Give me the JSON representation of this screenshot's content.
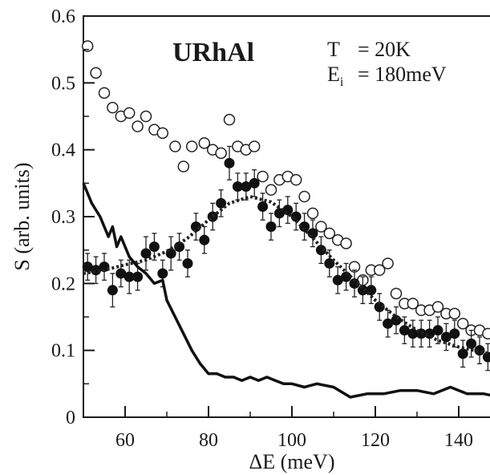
{
  "chart_data": {
    "type": "scatter",
    "title": "URhAl",
    "annotations": {
      "temperature_label": "T",
      "temperature_value": "= 20K",
      "energy_label": "E",
      "energy_subscript": "i",
      "energy_value": "= 180meV"
    },
    "xlabel": "ΔE (meV)",
    "ylabel": "S (arb. units)",
    "xlim": [
      50,
      150
    ],
    "ylim": [
      0,
      0.6
    ],
    "xticks": [
      60,
      80,
      100,
      120,
      140
    ],
    "yticks": [
      0,
      0.1,
      0.2,
      0.3,
      0.4,
      0.5,
      0.6
    ],
    "xtick_labels": [
      "60",
      "80",
      "100",
      "120",
      "140"
    ],
    "ytick_labels": [
      "0",
      "0.1",
      "0.2",
      "0.3",
      "0.4",
      "0.5",
      "0.6"
    ],
    "grid": false,
    "series": [
      {
        "marker": "open-circle",
        "x": [
          51,
          53,
          55,
          57,
          59,
          61,
          63,
          65,
          67,
          69,
          72,
          74,
          76,
          79,
          81,
          83,
          85,
          87,
          89,
          91,
          93,
          95,
          97,
          99,
          101,
          103,
          105,
          107,
          109,
          111,
          113,
          115,
          117,
          119,
          121,
          123,
          125,
          127,
          129,
          131,
          133,
          135,
          137,
          139,
          141,
          143,
          145,
          147,
          149
        ],
        "y": [
          0.555,
          0.515,
          0.485,
          0.463,
          0.45,
          0.455,
          0.435,
          0.45,
          0.43,
          0.425,
          0.405,
          0.375,
          0.405,
          0.41,
          0.4,
          0.395,
          0.445,
          0.405,
          0.4,
          0.405,
          0.36,
          0.34,
          0.355,
          0.36,
          0.355,
          0.33,
          0.305,
          0.285,
          0.275,
          0.265,
          0.26,
          0.225,
          0.205,
          0.22,
          0.22,
          0.23,
          0.185,
          0.17,
          0.17,
          0.16,
          0.16,
          0.165,
          0.155,
          0.155,
          0.14,
          0.13,
          0.13,
          0.125,
          0.125
        ]
      },
      {
        "marker": "filled-circle-errorbar",
        "x": [
          51,
          53,
          55,
          57,
          59,
          61,
          63,
          65,
          67,
          69,
          71,
          73,
          75,
          77,
          79,
          81,
          83,
          85,
          87,
          89,
          91,
          93,
          95,
          97,
          99,
          101,
          103,
          105,
          107,
          109,
          111,
          113,
          115,
          117,
          119,
          121,
          123,
          125,
          127,
          129,
          131,
          133,
          135,
          137,
          139,
          141,
          143,
          145,
          147,
          149
        ],
        "y": [
          0.225,
          0.22,
          0.225,
          0.19,
          0.215,
          0.21,
          0.21,
          0.245,
          0.255,
          0.215,
          0.245,
          0.255,
          0.23,
          0.285,
          0.265,
          0.3,
          0.32,
          0.38,
          0.345,
          0.345,
          0.35,
          0.315,
          0.285,
          0.305,
          0.31,
          0.3,
          0.285,
          0.275,
          0.25,
          0.23,
          0.205,
          0.21,
          0.2,
          0.19,
          0.19,
          0.165,
          0.14,
          0.145,
          0.13,
          0.125,
          0.125,
          0.125,
          0.13,
          0.12,
          0.125,
          0.095,
          0.11,
          0.1,
          0.09,
          0.085
        ],
        "err": [
          0.02,
          0.02,
          0.02,
          0.025,
          0.02,
          0.025,
          0.02,
          0.025,
          0.02,
          0.02,
          0.025,
          0.02,
          0.02,
          0.02,
          0.02,
          0.02,
          0.02,
          0.025,
          0.02,
          0.02,
          0.02,
          0.02,
          0.02,
          0.02,
          0.02,
          0.02,
          0.02,
          0.02,
          0.02,
          0.02,
          0.02,
          0.02,
          0.02,
          0.02,
          0.02,
          0.02,
          0.02,
          0.02,
          0.02,
          0.02,
          0.02,
          0.02,
          0.02,
          0.02,
          0.02,
          0.02,
          0.02,
          0.02,
          0.02,
          0.02
        ]
      },
      {
        "style": "dotted-fit",
        "x": [
          50,
          55,
          60,
          65,
          70,
          75,
          80,
          85,
          90,
          95,
          100,
          105,
          110,
          115,
          120,
          125,
          130,
          135,
          140,
          145,
          150
        ],
        "y": [
          0.215,
          0.22,
          0.228,
          0.235,
          0.248,
          0.268,
          0.295,
          0.32,
          0.33,
          0.322,
          0.3,
          0.268,
          0.235,
          0.205,
          0.175,
          0.15,
          0.13,
          0.115,
          0.105,
          0.098,
          0.092
        ]
      },
      {
        "style": "solid-line",
        "x": [
          50,
          52,
          54,
          56,
          57,
          58,
          59,
          61,
          63,
          65,
          67,
          69,
          70,
          72,
          74,
          76,
          78,
          80,
          82,
          84,
          86,
          88,
          90,
          92,
          94,
          96,
          98,
          100,
          103,
          106,
          110,
          114,
          118,
          122,
          126,
          130,
          134,
          138,
          142,
          146,
          150
        ],
        "y": [
          0.35,
          0.32,
          0.3,
          0.27,
          0.285,
          0.255,
          0.27,
          0.24,
          0.225,
          0.215,
          0.2,
          0.205,
          0.175,
          0.15,
          0.125,
          0.1,
          0.08,
          0.065,
          0.065,
          0.06,
          0.06,
          0.055,
          0.06,
          0.055,
          0.06,
          0.055,
          0.05,
          0.05,
          0.045,
          0.05,
          0.045,
          0.03,
          0.035,
          0.035,
          0.04,
          0.04,
          0.035,
          0.045,
          0.035,
          0.035,
          0.03
        ]
      }
    ]
  }
}
